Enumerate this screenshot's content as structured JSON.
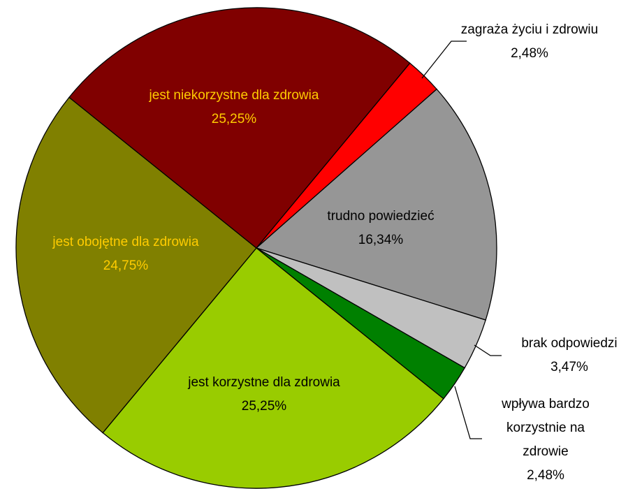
{
  "chart_data": {
    "type": "pie",
    "categories": [
      "zagraża życiu i zdrowiu",
      "trudno powiedzieć",
      "brak odpowiedzi",
      "wpływa bardzo korzystnie na zdrowie",
      "jest korzystne dla zdrowia",
      "jest obojętne dla zdrowia",
      "jest niekorzystne dla zdrowia"
    ],
    "values": [
      2.48,
      16.34,
      3.47,
      2.48,
      25.25,
      24.75,
      25.25
    ],
    "value_labels": [
      "2,48%",
      "16,34%",
      "3,47%",
      "2,48%",
      "25,25%",
      "24,75%",
      "25,25%"
    ],
    "colors": [
      "#ff0000",
      "#969696",
      "#c0c0c0",
      "#008000",
      "#99cc00",
      "#808000",
      "#800000"
    ]
  }
}
